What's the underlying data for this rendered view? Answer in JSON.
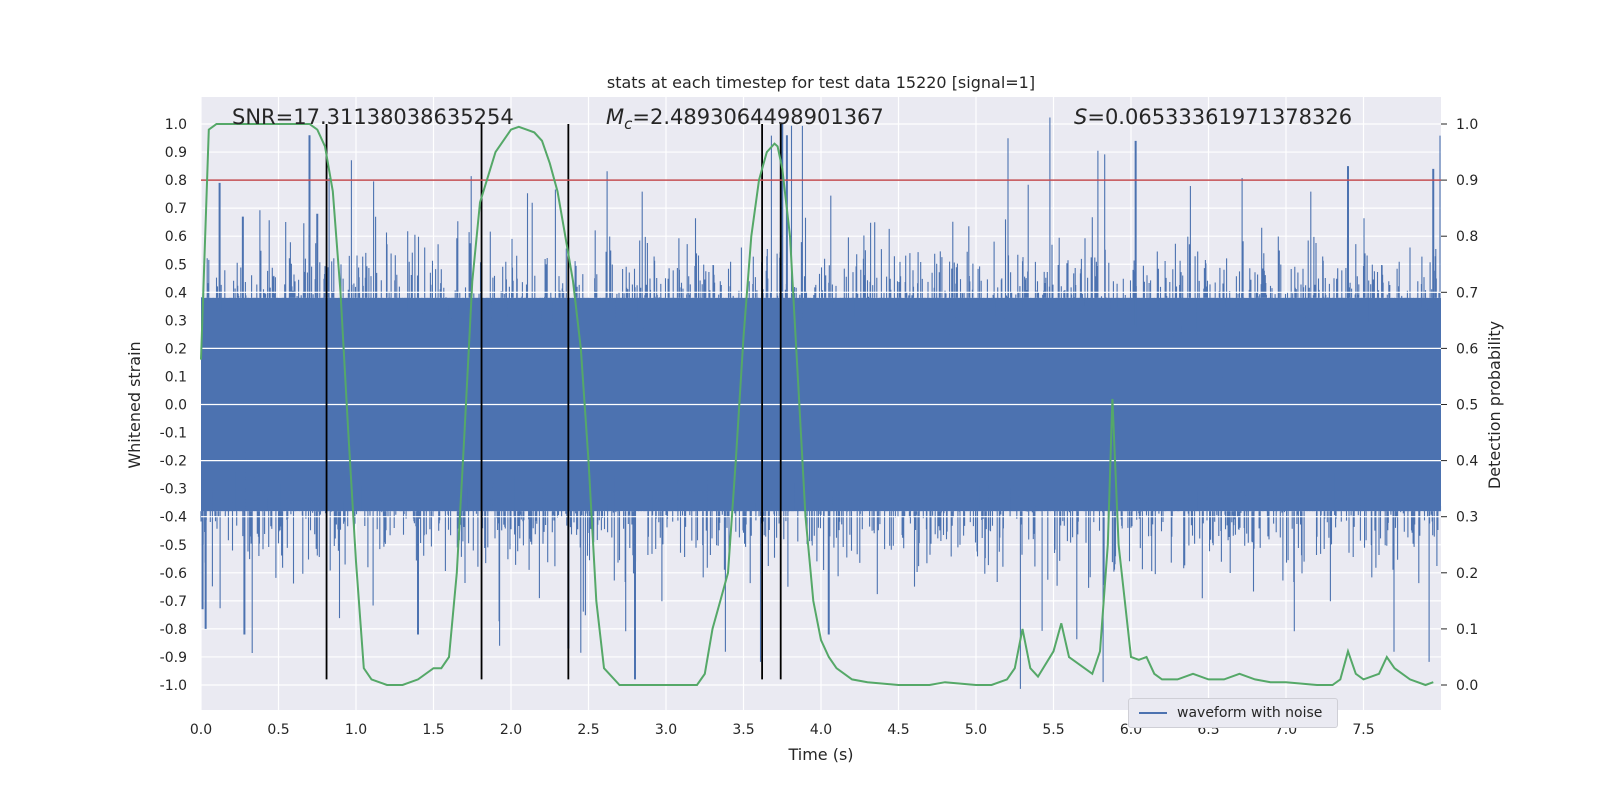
{
  "chart_data": {
    "type": "line",
    "title": "stats at each timestep for test data 15220 [signal=1]",
    "xlabel": "Time (s)",
    "ylabel": "Whitened strain",
    "y2label": "Detection probability",
    "xlim": [
      0.0,
      8.0
    ],
    "ylim": [
      -1.07,
      1.1
    ],
    "y2lim": [
      -0.05,
      1.05
    ],
    "xticks": [
      "0.0",
      "0.5",
      "1.0",
      "1.5",
      "2.0",
      "2.5",
      "3.0",
      "3.5",
      "4.0",
      "4.5",
      "5.0",
      "5.5",
      "6.0",
      "6.5",
      "7.0",
      "7.5"
    ],
    "yticks": [
      "1.0",
      "0.9",
      "0.8",
      "0.7",
      "0.6",
      "0.5",
      "0.4",
      "0.3",
      "0.2",
      "0.1",
      "0.0",
      "-0.1",
      "-0.2",
      "-0.3",
      "-0.4",
      "-0.5",
      "-0.6",
      "-0.7",
      "-0.8",
      "-0.9",
      "-1.0"
    ],
    "y2ticks": [
      "1.0",
      "0.9",
      "0.8",
      "0.7",
      "0.6",
      "0.5",
      "0.4",
      "0.3",
      "0.2",
      "0.1",
      "0.0"
    ],
    "annotations": {
      "snr": "SNR=17.31138038635254",
      "mc_symbol": "M",
      "mc_sub": "c",
      "mc_value": "=2.4893064498901367",
      "s_symbol": "S",
      "s_value": "=0.06533361971378326"
    },
    "threshold": {
      "y": 0.8,
      "color": "#c44e52"
    },
    "vertical_lines_x": [
      0.81,
      1.81,
      2.37,
      3.62,
      3.74
    ],
    "legend": {
      "label": "waveform with noise",
      "position": "lower-right"
    },
    "series": [
      {
        "name": "waveform with noise",
        "color": "#4c72b0",
        "description": "dense whitened strain noise, envelope roughly ±0.45 with spikes",
        "notable_spikes": [
          {
            "x": 0.01,
            "y": -0.73
          },
          {
            "x": 0.03,
            "y": -0.8
          },
          {
            "x": 0.12,
            "y": 0.79
          },
          {
            "x": 0.27,
            "y": 0.67
          },
          {
            "x": 0.28,
            "y": -0.82
          },
          {
            "x": 0.7,
            "y": 0.96
          },
          {
            "x": 0.75,
            "y": 0.68
          },
          {
            "x": 1.4,
            "y": -0.82
          },
          {
            "x": 2.37,
            "y": -0.87
          },
          {
            "x": 2.8,
            "y": -0.98
          },
          {
            "x": 3.75,
            "y": 1.0
          },
          {
            "x": 3.78,
            "y": 0.96
          },
          {
            "x": 4.05,
            "y": -0.82
          },
          {
            "x": 6.03,
            "y": 0.94
          },
          {
            "x": 7.4,
            "y": 0.85
          },
          {
            "x": 7.95,
            "y": 0.84
          }
        ]
      },
      {
        "name": "detection probability",
        "color": "#55a868",
        "axis": "right",
        "x": [
          0.0,
          0.05,
          0.1,
          0.2,
          0.3,
          0.5,
          0.6,
          0.7,
          0.75,
          0.8,
          0.85,
          0.9,
          0.95,
          1.0,
          1.05,
          1.1,
          1.2,
          1.3,
          1.4,
          1.5,
          1.55,
          1.6,
          1.65,
          1.7,
          1.75,
          1.8,
          1.9,
          2.0,
          2.05,
          2.1,
          2.15,
          2.2,
          2.25,
          2.3,
          2.35,
          2.4,
          2.45,
          2.5,
          2.55,
          2.6,
          2.7,
          2.8,
          3.0,
          3.2,
          3.25,
          3.3,
          3.35,
          3.4,
          3.45,
          3.5,
          3.55,
          3.6,
          3.65,
          3.7,
          3.72,
          3.75,
          3.8,
          3.85,
          3.9,
          3.95,
          4.0,
          4.05,
          4.1,
          4.2,
          4.3,
          4.5,
          4.7,
          4.8,
          5.0,
          5.1,
          5.2,
          5.25,
          5.3,
          5.35,
          5.4,
          5.5,
          5.55,
          5.6,
          5.7,
          5.75,
          5.8,
          5.85,
          5.88,
          5.92,
          6.0,
          6.05,
          6.1,
          6.15,
          6.2,
          6.3,
          6.4,
          6.5,
          6.6,
          6.7,
          6.8,
          6.9,
          7.0,
          7.2,
          7.3,
          7.35,
          7.4,
          7.45,
          7.5,
          7.6,
          7.65,
          7.7,
          7.8,
          7.9,
          7.95
        ],
        "values": [
          0.58,
          0.99,
          1.0,
          1.0,
          1.0,
          1.0,
          1.0,
          1.0,
          0.99,
          0.96,
          0.88,
          0.7,
          0.45,
          0.22,
          0.03,
          0.01,
          0.0,
          0.0,
          0.01,
          0.03,
          0.03,
          0.05,
          0.2,
          0.45,
          0.72,
          0.86,
          0.95,
          0.99,
          0.995,
          0.99,
          0.985,
          0.97,
          0.93,
          0.88,
          0.8,
          0.72,
          0.6,
          0.4,
          0.15,
          0.03,
          0.0,
          0.0,
          0.0,
          0.0,
          0.02,
          0.1,
          0.15,
          0.2,
          0.4,
          0.62,
          0.8,
          0.9,
          0.95,
          0.965,
          0.96,
          0.92,
          0.8,
          0.55,
          0.3,
          0.15,
          0.08,
          0.05,
          0.03,
          0.01,
          0.005,
          0.0,
          0.0,
          0.005,
          0.0,
          0.0,
          0.01,
          0.03,
          0.1,
          0.03,
          0.015,
          0.06,
          0.11,
          0.05,
          0.03,
          0.02,
          0.06,
          0.25,
          0.51,
          0.25,
          0.05,
          0.045,
          0.05,
          0.02,
          0.01,
          0.01,
          0.02,
          0.01,
          0.01,
          0.02,
          0.01,
          0.005,
          0.005,
          0.0,
          0.0,
          0.01,
          0.06,
          0.02,
          0.01,
          0.02,
          0.05,
          0.03,
          0.01,
          0.0,
          0.005
        ]
      }
    ]
  }
}
